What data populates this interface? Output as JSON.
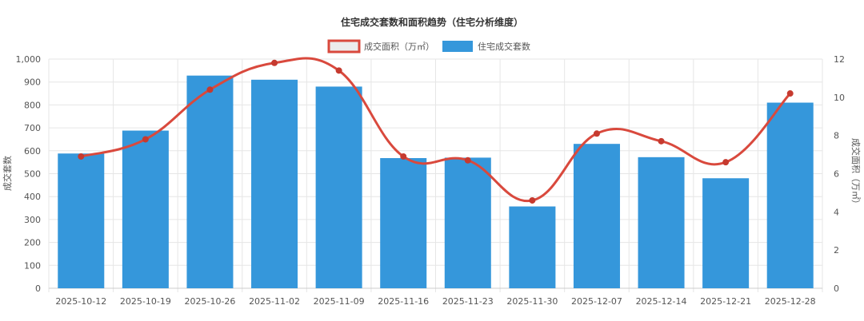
{
  "chart_data": {
    "type": "bar",
    "title": "住宅成交套数和面积趋势（住宅分析维度）",
    "categories": [
      "2025-10-12",
      "2025-10-19",
      "2025-10-26",
      "2025-11-02",
      "2025-11-09",
      "2025-11-16",
      "2025-11-23",
      "2025-11-30",
      "2025-12-07",
      "2025-12-14",
      "2025-12-21",
      "2025-12-28"
    ],
    "series": [
      {
        "name": "住宅成交套数",
        "type": "bar",
        "axis": "left",
        "color": "#3597db",
        "values": [
          588,
          688,
          928,
          910,
          880,
          568,
          570,
          357,
          630,
          572,
          480,
          810
        ]
      },
      {
        "name": "成交面积（万㎡）",
        "type": "line",
        "axis": "right",
        "color": "#d9493d",
        "values": [
          6.9,
          7.8,
          10.4,
          11.8,
          11.4,
          6.9,
          6.7,
          4.6,
          8.1,
          7.7,
          6.6,
          10.2
        ]
      }
    ],
    "ylabel": "成交套数",
    "y2label": "成交面积（万㎡）",
    "ylim": [
      0,
      1000
    ],
    "y2lim": [
      0,
      12
    ],
    "yticks": [
      "0",
      "100",
      "200",
      "300",
      "400",
      "500",
      "600",
      "700",
      "800",
      "900",
      "1,000"
    ],
    "y2ticks": [
      "0",
      "2",
      "4",
      "6",
      "8",
      "10",
      "12"
    ],
    "grid": true,
    "legend_position": "top-center"
  }
}
